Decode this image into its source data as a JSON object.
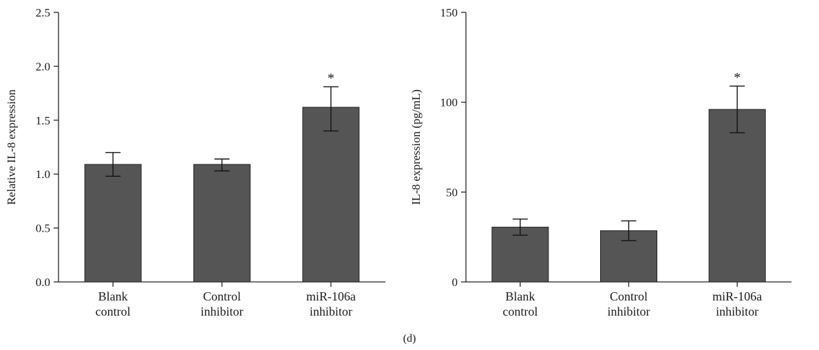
{
  "figure": {
    "panel_label": "(d)"
  },
  "colors": {
    "bar_fill": "#555555",
    "bar_stroke": "#222222",
    "axis": "#222222"
  },
  "chart_data": [
    {
      "type": "bar",
      "title": "",
      "xlabel": "",
      "ylabel": "Relative IL-8 expression",
      "ylim": [
        0,
        2.5
      ],
      "yticks": [
        "0.0",
        "0.5",
        "1.0",
        "1.5",
        "2.0",
        "2.5"
      ],
      "categories": [
        [
          "Blank",
          "control"
        ],
        [
          "Control",
          "inhibitor"
        ],
        [
          "miR-106a",
          "inhibitor"
        ]
      ],
      "values": [
        1.09,
        1.09,
        1.62
      ],
      "error_low": [
        0.98,
        1.03,
        1.4
      ],
      "error_high": [
        1.2,
        1.14,
        1.81
      ],
      "significance": [
        "",
        "",
        "*"
      ],
      "grid": false
    },
    {
      "type": "bar",
      "title": "",
      "xlabel": "",
      "ylabel": "IL-8 expression (pg/mL)",
      "ylim": [
        0,
        150
      ],
      "yticks": [
        "0",
        "50",
        "100",
        "150"
      ],
      "categories": [
        [
          "Blank",
          "control"
        ],
        [
          "Control",
          "inhibitor"
        ],
        [
          "miR-106a",
          "inhibitor"
        ]
      ],
      "values": [
        30.5,
        28.5,
        96
      ],
      "error_low": [
        26,
        23,
        83
      ],
      "error_high": [
        35,
        34,
        109
      ],
      "significance": [
        "",
        "",
        "*"
      ],
      "grid": false
    }
  ]
}
